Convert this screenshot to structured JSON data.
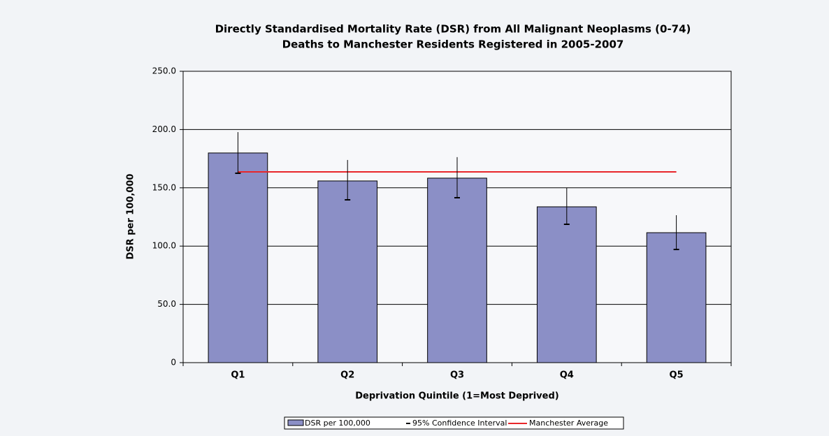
{
  "chart_data": {
    "type": "bar",
    "title": "Directly Standardised Mortality Rate (DSR) from All Malignant Neoplasms (0-74)",
    "subtitle": "Deaths to Manchester Residents Registered in 2005-2007",
    "x_label": "Deprivation Quintile (1=Most Deprived)",
    "y_label": "DSR per 100,000",
    "categories": [
      "Q1",
      "Q2",
      "Q3",
      "Q4",
      "Q5"
    ],
    "series": [
      {
        "name": "DSR per 100,000",
        "color": "#8b8fc6",
        "values": [
          179.9,
          155.9,
          158.3,
          133.7,
          111.5
        ]
      },
      {
        "name": "95% Confidence Interval",
        "color": "#000000",
        "lower": [
          162.5,
          139.7,
          141.5,
          118.7,
          97.1
        ],
        "upper": [
          197.8,
          173.9,
          176.3,
          149.9,
          126.5
        ]
      },
      {
        "name": "Manchester Average",
        "color": "#e8262a",
        "value": 163.7
      }
    ],
    "ylim": [
      0,
      250
    ],
    "yticks": [
      {
        "value": 0,
        "label": "0"
      },
      {
        "value": 50,
        "label": "50.0"
      },
      {
        "value": 100,
        "label": "100.0"
      },
      {
        "value": 150,
        "label": "150.0"
      },
      {
        "value": 200,
        "label": "200.0"
      },
      {
        "value": 250,
        "label": "250.0"
      }
    ],
    "grid": true,
    "legend": "bottom"
  }
}
